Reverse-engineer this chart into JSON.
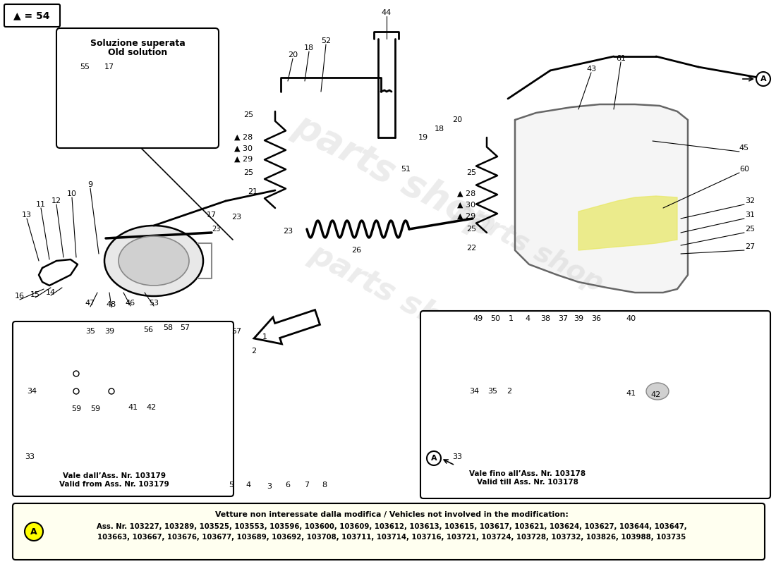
{
  "bg": "#ffffff",
  "triangle_label": "▲ = 54",
  "old_sol_line1": "Soluzione superata",
  "old_sol_line2": "Old solution",
  "bottom_note_title": "Vetture non interessate dalla modifica / Vehicles not involved in the modification:",
  "bottom_note_line1": "Ass. Nr. 103227, 103289, 103525, 103553, 103596, 103600, 103609, 103612, 103613, 103615, 103617, 103621, 103624, 103627, 103644, 103647,",
  "bottom_note_line2": "103663, 103667, 103676, 103677, 103689, 103692, 103708, 103711, 103714, 103716, 103721, 103724, 103728, 103732, 103826, 103988, 103735",
  "bl_caption1": "Vale dall’Ass. Nr. 103179",
  "bl_caption2": "Valid from Ass. Nr. 103179",
  "br_caption1": "Vale fino all’Ass. Nr. 103178",
  "br_caption2": "Valid till Ass. Nr. 103178",
  "yellow": "#ffff00",
  "note_bg": "#fffff0",
  "wm_color": "#c8c8c8"
}
